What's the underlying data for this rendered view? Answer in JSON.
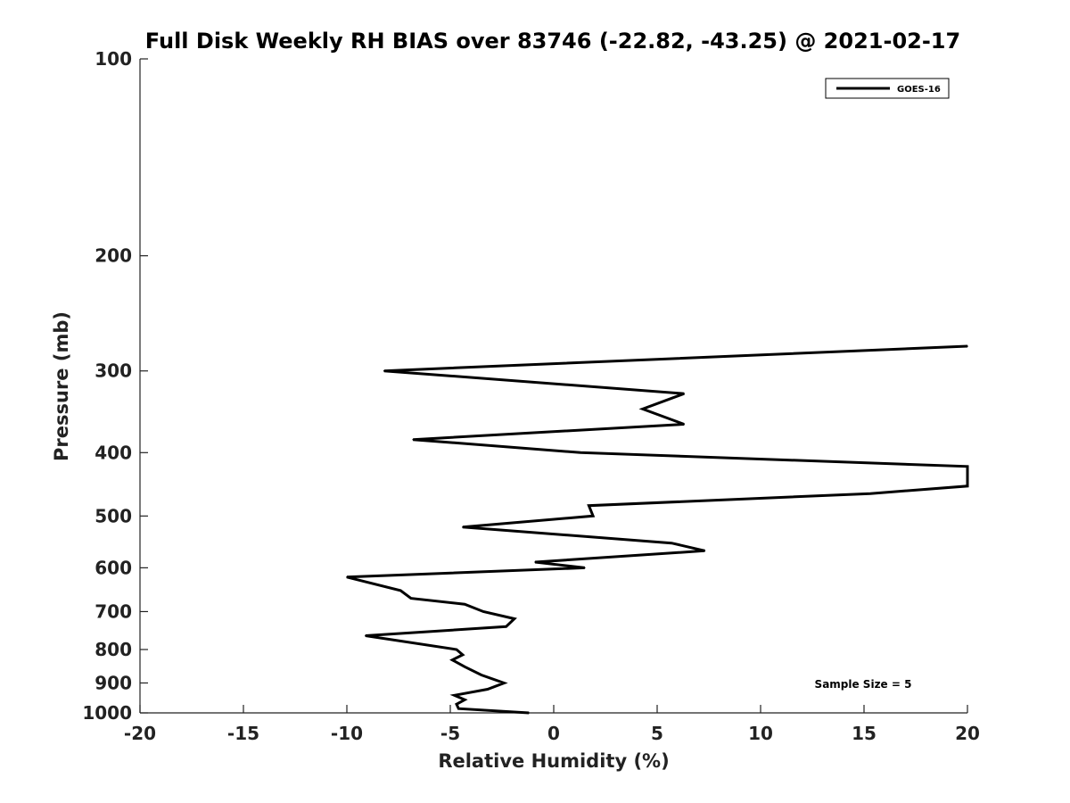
{
  "chart_data": {
    "type": "line",
    "title": "Full Disk Weekly RH BIAS over 83746 (-22.82, -43.25) @ 2021-02-17",
    "xlabel": "Relative Humidity (%)",
    "ylabel": "Pressure (mb)",
    "xlim": [
      -20,
      20
    ],
    "ylim": [
      1000,
      100
    ],
    "yscale": "log",
    "y_reversed": true,
    "xticks": [
      -20,
      -15,
      -10,
      -5,
      0,
      5,
      10,
      15,
      20
    ],
    "yticks": [
      100,
      200,
      300,
      400,
      500,
      600,
      700,
      800,
      900,
      1000
    ],
    "xtick_labels": [
      "-20",
      "-15",
      "-10",
      "-5",
      "0",
      "5",
      "10",
      "15",
      "20"
    ],
    "ytick_labels": [
      "100",
      "200",
      "300",
      "400",
      "500",
      "600",
      "700",
      "800",
      "900",
      "1000"
    ],
    "grid": false,
    "legend_position": "top-right",
    "annotation": "Sample Size = 5",
    "series": [
      {
        "name": "GOES-16",
        "color": "#000000",
        "points": [
          {
            "x": 20.0,
            "y": 275
          },
          {
            "x": -8.2,
            "y": 300
          },
          {
            "x": 6.3,
            "y": 325
          },
          {
            "x": 4.3,
            "y": 343
          },
          {
            "x": 6.3,
            "y": 362
          },
          {
            "x": -6.8,
            "y": 382
          },
          {
            "x": 1.3,
            "y": 400
          },
          {
            "x": 20.0,
            "y": 420
          },
          {
            "x": 20.0,
            "y": 450
          },
          {
            "x": 15.3,
            "y": 462
          },
          {
            "x": 1.7,
            "y": 482
          },
          {
            "x": 1.9,
            "y": 500
          },
          {
            "x": -4.4,
            "y": 520
          },
          {
            "x": 5.7,
            "y": 550
          },
          {
            "x": 7.3,
            "y": 565
          },
          {
            "x": -0.9,
            "y": 588
          },
          {
            "x": 1.5,
            "y": 600
          },
          {
            "x": -10.0,
            "y": 620
          },
          {
            "x": -7.4,
            "y": 650
          },
          {
            "x": -6.9,
            "y": 668
          },
          {
            "x": -4.3,
            "y": 682
          },
          {
            "x": -3.4,
            "y": 700
          },
          {
            "x": -1.9,
            "y": 718
          },
          {
            "x": -2.3,
            "y": 738
          },
          {
            "x": -9.1,
            "y": 762
          },
          {
            "x": -4.7,
            "y": 800
          },
          {
            "x": -4.4,
            "y": 815
          },
          {
            "x": -4.9,
            "y": 830
          },
          {
            "x": -4.3,
            "y": 850
          },
          {
            "x": -3.5,
            "y": 875
          },
          {
            "x": -2.4,
            "y": 900
          },
          {
            "x": -3.2,
            "y": 920
          },
          {
            "x": -4.8,
            "y": 940
          },
          {
            "x": -4.3,
            "y": 955
          },
          {
            "x": -4.7,
            "y": 970
          },
          {
            "x": -4.6,
            "y": 985
          },
          {
            "x": -1.2,
            "y": 1000
          }
        ]
      }
    ]
  }
}
